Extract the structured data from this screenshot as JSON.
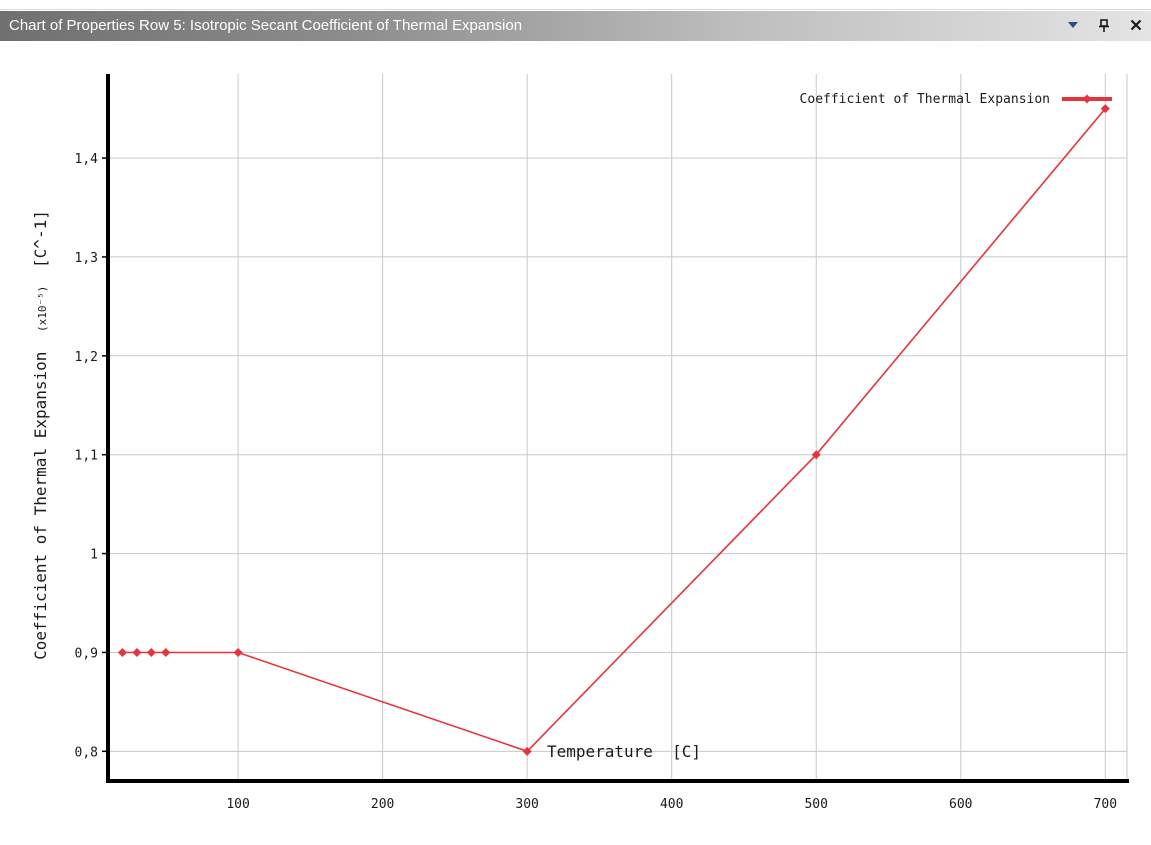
{
  "window": {
    "title": "Chart of Properties Row 5: Isotropic Secant Coefficient of Thermal Expansion",
    "dropdown_icon": "dropdown-arrow-icon",
    "pin_icon": "pin-icon",
    "close_icon": "close-icon"
  },
  "colors": {
    "series": "#e8333d",
    "grid": "#c8c8c8",
    "axis": "#000000",
    "titlebar_start": "#707070",
    "titlebar_end": "#e4e4e4"
  },
  "chart_data": {
    "type": "line",
    "xlabel": "Temperature  [C]",
    "ylabel": "Coefficient of Thermal Expansion",
    "ylabel_scale": "(x10⁻⁵)",
    "ylabel_unit": "[C^-1]",
    "xlim": [
      10,
      715
    ],
    "ylim": [
      0.77,
      1.485
    ],
    "x_ticks": [
      {
        "value": 100,
        "label": "100"
      },
      {
        "value": 200,
        "label": "200"
      },
      {
        "value": 300,
        "label": "300"
      },
      {
        "value": 400,
        "label": "400"
      },
      {
        "value": 500,
        "label": "500"
      },
      {
        "value": 600,
        "label": "600"
      },
      {
        "value": 700,
        "label": "700"
      }
    ],
    "y_ticks": [
      {
        "value": 0.8,
        "label": "0,8"
      },
      {
        "value": 0.9,
        "label": "0,9"
      },
      {
        "value": 1.0,
        "label": "1"
      },
      {
        "value": 1.1,
        "label": "1,1"
      },
      {
        "value": 1.2,
        "label": "1,2"
      },
      {
        "value": 1.3,
        "label": "1,3"
      },
      {
        "value": 1.4,
        "label": "1,4"
      }
    ],
    "grid": true,
    "legend_position": "top-right",
    "series": [
      {
        "name": "Coefficient of Thermal Expansion",
        "color": "#e8333d",
        "marker": "diamond",
        "x": [
          20,
          30,
          40,
          50,
          100,
          300,
          500,
          700
        ],
        "y": [
          0.9,
          0.9,
          0.9,
          0.9,
          0.9,
          0.8,
          1.1,
          1.45
        ]
      }
    ]
  }
}
